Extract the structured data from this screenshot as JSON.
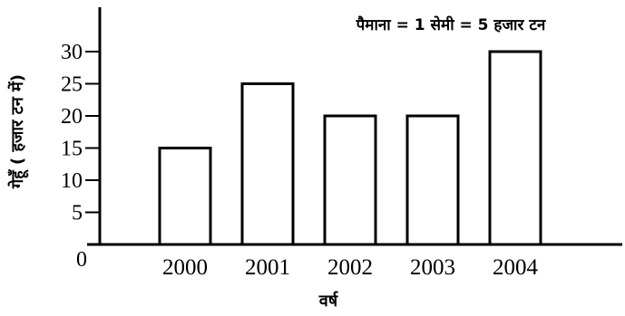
{
  "chart_data": {
    "type": "bar",
    "categories": [
      "2000",
      "2001",
      "2002",
      "2003",
      "2004"
    ],
    "values": [
      15,
      25,
      20,
      20,
      30
    ],
    "xlabel": "वर्ष",
    "ylabel": "गेहूँ ( हजार टन में)",
    "ylim": [
      0,
      35
    ],
    "yticks": [
      "5",
      "10",
      "15",
      "20",
      "25",
      "30"
    ],
    "origin_label": "0",
    "annotation": "पैमाना = 1 सेमी = 5 हजार टन",
    "grid": false,
    "legend": "none",
    "bar_fill": "#ffffff",
    "bar_stroke": "#000000"
  }
}
